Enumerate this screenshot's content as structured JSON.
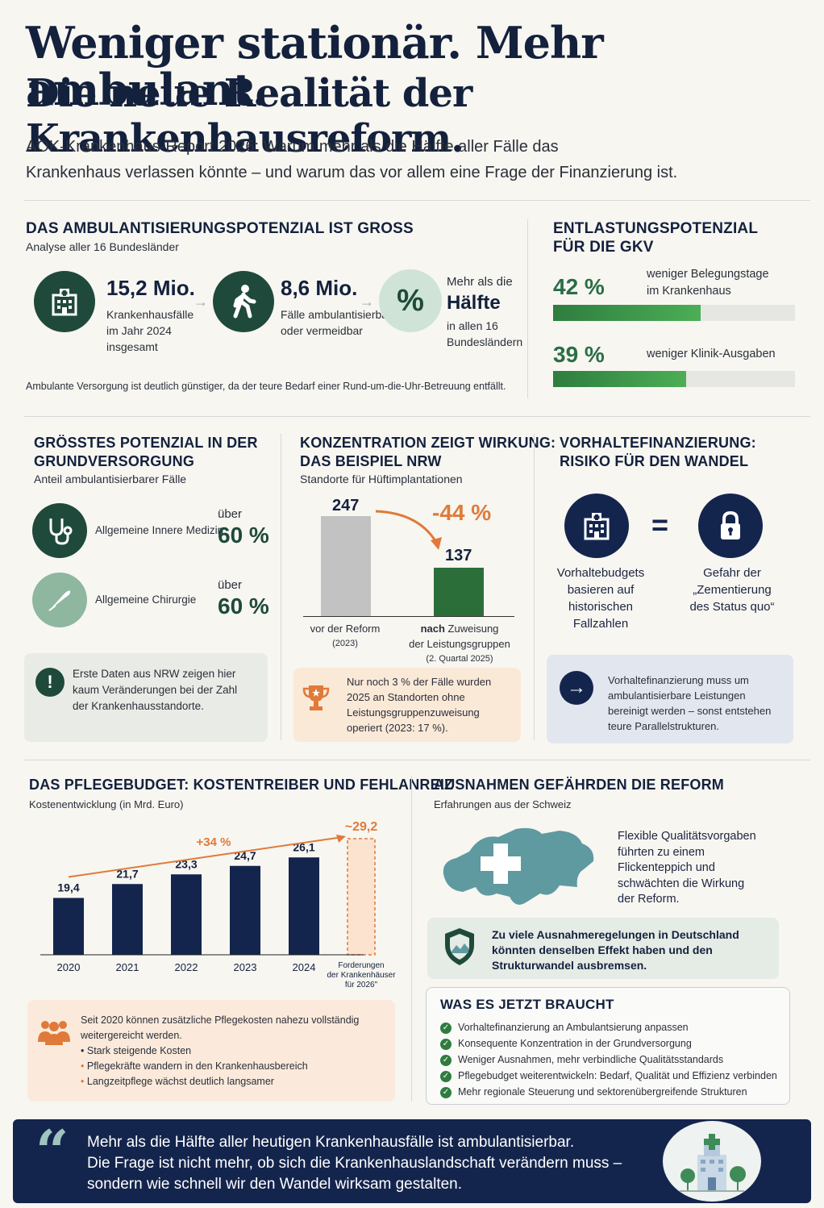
{
  "header": {
    "title_line1": "Weniger stationär. Mehr ambulant.",
    "title_line2": "Die neue Realität der Krankenhausreform.",
    "subtitle_line1": "AOK-Krankenhaus-Report 2026: Warum mehr als die Hälfte aller Fälle das",
    "subtitle_line2": "Krankenhaus verlassen könnte – und warum das vor allem eine Frage der Finanzierung ist."
  },
  "potential": {
    "title": "DAS AMBULANTISIERUNGSPOTENZIAL IST GROSS",
    "subtitle": "Analyse aller 16 Bundesländer",
    "stat1_value": "15,2 Mio.",
    "stat1_l1": "Krankenhausfälle",
    "stat1_l2": "im Jahr 2024",
    "stat1_l3": "insgesamt",
    "stat2_value": "8,6 Mio.",
    "stat2_l1": "Fälle ambulantisierbar",
    "stat2_l2": "oder vermeidbar",
    "stat3_pre": "Mehr als die",
    "stat3_value": "Hälfte",
    "stat3_l1": "in allen 16",
    "stat3_l2": "Bundesländern",
    "percent_icon": "%",
    "note": "Ambulante Versorgung ist deutlich günstiger, da der teure Bedarf einer Rund-um-die-Uhr-Betreuung entfällt."
  },
  "relief": {
    "title_l1": "ENTLASTUNGSPOTENZIAL",
    "title_l2": "FÜR DIE GKV",
    "items": [
      {
        "value": "42 %",
        "fraction": 0.61,
        "label_l1": "weniger Belegungstage",
        "label_l2": "im Krankenhaus"
      },
      {
        "value": "39 %",
        "fraction": 0.55,
        "label_l1": "weniger Klinik-Ausgaben",
        "label_l2": ""
      }
    ]
  },
  "basic_care": {
    "title_l1": "GRÖSSTES POTENZIAL IN DER",
    "title_l2": "GRUNDVERSORGUNG",
    "subtitle": "Anteil ambulantisierbarer Fälle",
    "items": [
      {
        "label": "Allgemeine Innere Medizin",
        "pre": "über",
        "value": "60 %"
      },
      {
        "label": "Allgemeine Chirurgie",
        "pre": "über",
        "value": "60 %"
      }
    ],
    "alert_icon": "!",
    "note_l1": "Erste Daten aus NRW zeigen hier",
    "note_l2": "kaum Veränderungen bei der Zahl",
    "note_l3": "der Krankenhausstandorte."
  },
  "concentration": {
    "title_l1": "KONZENTRATION ZEIGT WIRKUNG:",
    "title_l2": "DAS BEISPIEL NRW",
    "subtitle": "Standorte für Hüftimplantationen",
    "change": "-44 %",
    "bar1_value": "247",
    "bar1_label": "vor der Reform",
    "bar1_sub": "(2023)",
    "bar2_value": "137",
    "bar2_label_bold": "nach",
    "bar2_label_rest": " Zuweisung",
    "bar2_label_l2": "der Leistungsgruppen",
    "bar2_sub": "(2. Quartal 2025)",
    "note_l1": "Nur noch 3 % der Fälle wurden",
    "note_l2": "2025 an Standorten ohne",
    "note_l3": "Leistungsgruppenzuweisung",
    "note_l4": "operiert (2023: 17 %)."
  },
  "financing": {
    "title_l1": "VORHALTEFINANZIERUNG:",
    "title_l2": "RISIKO FÜR DEN WANDEL",
    "equals": "=",
    "left_l1": "Vorhaltebudgets",
    "left_l2": "basieren auf",
    "left_l3": "historischen",
    "left_l4": "Fallzahlen",
    "right_l1": "Gefahr der",
    "right_l2": "„Zementierung",
    "right_l3": "des Status quo“",
    "note_l1": "Vorhaltefinanzierung muss um",
    "note_l2": "ambulantisierbare Leistungen",
    "note_l3": "bereinigt werden – sonst entstehen",
    "note_l4": "teure Parallelstrukturen."
  },
  "care_budget": {
    "title": "DAS PFLEGEBUDGET: KOSTENTREIBER UND FEHLANREIZ",
    "subtitle": "Kostenentwicklung (in Mrd. Euro)",
    "trend_label": "+34 %",
    "forecast_label": "~29,2",
    "forecast_l1": "Forderungen",
    "forecast_l2": "der Krankenhäuser",
    "forecast_l3": "für 2026\"",
    "note_l1": "Seit 2020 können zusätzliche Pflegekosten nahezu vollständig",
    "note_l2": "weitergereicht werden.",
    "bullets": [
      "Stark steigende Kosten",
      "Pflegekräfte wandern in den Krankenhausbereich",
      "Langzeitpflege wächst deutlich langsamer"
    ]
  },
  "chart_data": {
    "type": "bar",
    "categories": [
      "2020",
      "2021",
      "2022",
      "2023",
      "2024"
    ],
    "values": [
      19.4,
      21.7,
      23.3,
      24.7,
      26.1
    ],
    "labels": [
      "19,4",
      "21,7",
      "23,3",
      "24,7",
      "26,1"
    ],
    "forecast": {
      "value": 29.2,
      "label": "~29,2"
    },
    "title": "DAS PFLEGEBUDGET: KOSTENTREIBER UND FEHLANREIZ",
    "subtitle": "Kostenentwicklung (in Mrd. Euro)",
    "annotation": "+34 %",
    "colors": {
      "bars": "#14254d",
      "forecast": "#e07a3a",
      "trend": "#e07a3a"
    }
  },
  "exceptions": {
    "title": "AUSNAHMEN GEFÄHRDEN DIE REFORM",
    "subtitle": "Erfahrungen aus der Schweiz",
    "text_l1": "Flexible Qualitätsvorgaben",
    "text_l2": "führten zu einem",
    "text_l3": "Flickenteppich und",
    "text_l4": "schwächten die Wirkung",
    "text_l5": "der Reform.",
    "warn_l1": "Zu viele Ausnahmeregelungen in Deutschland",
    "warn_l2": "könnten denselben Effekt haben und den",
    "warn_l3": "Strukturwandel ausbremsen."
  },
  "needs": {
    "title": "WAS ES JETZT BRAUCHT",
    "items": [
      "Vorhaltefinanzierung an Ambulantsierung anpassen",
      "Konsequente Konzentration in der Grundversorgung",
      "Weniger Ausnahmen, mehr verbindliche Qualitätsstandards",
      "Pflegebudget weiterentwickeln: Bedarf, Qualität und Effizienz verbinden",
      "Mehr regionale Steuerung und sektorenübergreifende Strukturen"
    ]
  },
  "quote": {
    "mark": "“",
    "l1": "Mehr als die Hälfte aller heutigen Krankenhausfälle ist ambulantisierbar.",
    "l2": "Die Frage ist nicht mehr, ob sich die Krankenhauslandschaft verändern muss –",
    "l3": "sondern wie schnell wir den Wandel wirksam gestalten."
  },
  "colors": {
    "navy": "#14254d",
    "green_dark": "#1f4a3b",
    "green": "#2a6e45",
    "orange": "#e07a3a",
    "gray_bar": "#c2c2c2"
  }
}
